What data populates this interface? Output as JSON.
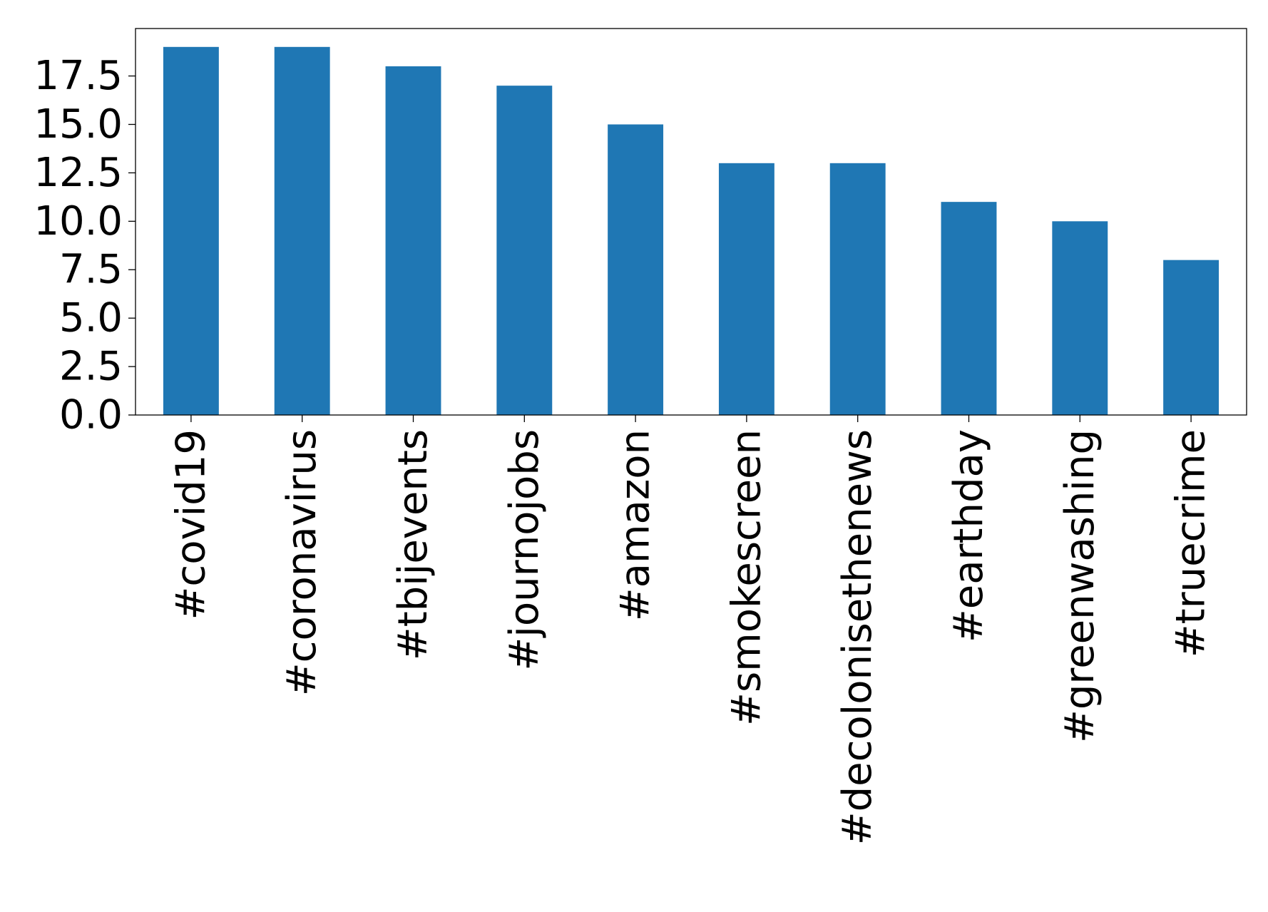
{
  "chart_data": {
    "type": "bar",
    "categories": [
      "#covid19",
      "#coronavirus",
      "#tbijevents",
      "#journojobs",
      "#amazon",
      "#smokescreen",
      "#decolonisethenews",
      "#earthday",
      "#greenwashing",
      "#truecrime"
    ],
    "values": [
      19,
      19,
      18,
      17,
      15,
      13,
      13,
      11,
      10,
      8
    ],
    "yticks": [
      "0.0",
      "2.5",
      "5.0",
      "7.5",
      "10.0",
      "12.5",
      "15.0",
      "17.5"
    ],
    "ylim": [
      0,
      19.95
    ],
    "title": "",
    "xlabel": "",
    "ylabel": "",
    "bar_color": "#1f77b4",
    "grid": false,
    "legend": "none"
  }
}
